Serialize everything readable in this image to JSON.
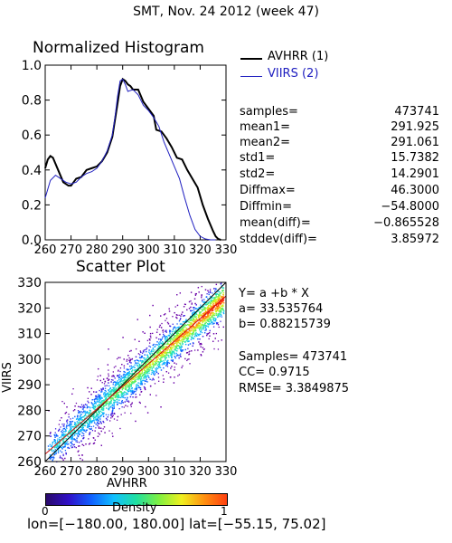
{
  "header": {
    "title": "SMT,  Nov. 24 2012 (week 47)"
  },
  "histogram": {
    "title": "Normalized Histogram",
    "legend": [
      {
        "label": "AVHRR (1)",
        "color": "#000000"
      },
      {
        "label": "VIIRS (2)",
        "color": "#2020c0"
      }
    ]
  },
  "stats": [
    {
      "label": "samples=",
      "value": "473741"
    },
    {
      "label": "mean1=",
      "value": "291.925"
    },
    {
      "label": "mean2=",
      "value": "291.061"
    },
    {
      "label": "std1=",
      "value": "15.7382"
    },
    {
      "label": "std2=",
      "value": "14.2901"
    },
    {
      "label": "Diffmax=",
      "value": "46.3000"
    },
    {
      "label": "Diffmin=",
      "value": "−54.8000"
    },
    {
      "label": "mean(diff)=",
      "value": "−0.865528"
    },
    {
      "label": "stddev(diff)=",
      "value": "3.85972"
    }
  ],
  "scatter": {
    "title": "Scatter Plot",
    "regression": [
      "Y= a +b * X",
      "a= 33.535764",
      "b= 0.88215739"
    ],
    "metrics": [
      "Samples= 473741",
      "CC=  0.9715",
      "RMSE= 3.3849875"
    ]
  },
  "colorbar": {
    "label": "Density",
    "min_label": "0",
    "max_label": "1"
  },
  "footer": {
    "text": "lon=[−180.00, 180.00] lat=[−55.15, 75.02]"
  },
  "chart_data": [
    {
      "type": "line",
      "title": "Normalized Histogram",
      "xlim": [
        260,
        330
      ],
      "ylim": [
        0.0,
        1.0
      ],
      "xticks": [
        "260",
        "270",
        "280",
        "290",
        "300",
        "310",
        "320",
        "330"
      ],
      "yticks": [
        "0.0",
        "0.2",
        "0.4",
        "0.6",
        "0.8",
        "1.0"
      ],
      "series": [
        {
          "name": "AVHRR (1)",
          "color": "#000000",
          "x": [
            260,
            261,
            262,
            263,
            265,
            267,
            269,
            270,
            272,
            274,
            276,
            278,
            280,
            282,
            284,
            286,
            288,
            289,
            290,
            291,
            292,
            293,
            294,
            296,
            298,
            300,
            302,
            303,
            305,
            307,
            309,
            311,
            313,
            315,
            317,
            319,
            321,
            323,
            325,
            326,
            327,
            328
          ],
          "y": [
            0.41,
            0.46,
            0.48,
            0.47,
            0.4,
            0.33,
            0.31,
            0.31,
            0.35,
            0.36,
            0.4,
            0.41,
            0.42,
            0.45,
            0.5,
            0.59,
            0.78,
            0.88,
            0.92,
            0.91,
            0.89,
            0.88,
            0.86,
            0.86,
            0.79,
            0.75,
            0.71,
            0.63,
            0.62,
            0.58,
            0.53,
            0.47,
            0.46,
            0.4,
            0.35,
            0.3,
            0.2,
            0.12,
            0.05,
            0.02,
            0.005,
            0.0
          ]
        },
        {
          "name": "VIIRS (2)",
          "color": "#2020c0",
          "x": [
            260,
            262,
            264,
            266,
            268,
            270,
            272,
            274,
            276,
            278,
            280,
            282,
            284,
            286,
            287,
            288,
            289,
            290,
            291,
            292,
            294,
            296,
            298,
            300,
            302,
            304,
            306,
            308,
            310,
            312,
            314,
            316,
            318,
            320,
            322,
            324,
            326
          ],
          "y": [
            0.24,
            0.34,
            0.37,
            0.35,
            0.33,
            0.32,
            0.33,
            0.36,
            0.38,
            0.39,
            0.41,
            0.45,
            0.51,
            0.6,
            0.7,
            0.82,
            0.91,
            0.92,
            0.89,
            0.85,
            0.86,
            0.83,
            0.77,
            0.74,
            0.7,
            0.65,
            0.56,
            0.49,
            0.42,
            0.35,
            0.24,
            0.14,
            0.06,
            0.02,
            0.005,
            0.0,
            0.0
          ]
        }
      ]
    },
    {
      "type": "scatter",
      "title": "Scatter Plot",
      "xlabel": "AVHRR",
      "ylabel": "VIIRS",
      "xlim": [
        260,
        330
      ],
      "ylim": [
        260,
        330
      ],
      "xticks": [
        "260",
        "270",
        "280",
        "290",
        "300",
        "310",
        "320",
        "330"
      ],
      "yticks": [
        "260",
        "270",
        "280",
        "290",
        "300",
        "310",
        "320",
        "330"
      ],
      "fit_line": {
        "a": 33.535764,
        "b": 0.88215739
      },
      "one_to_one_line": true,
      "colorscale": "density",
      "density_range": [
        0,
        1
      ],
      "samples": 473741
    }
  ]
}
